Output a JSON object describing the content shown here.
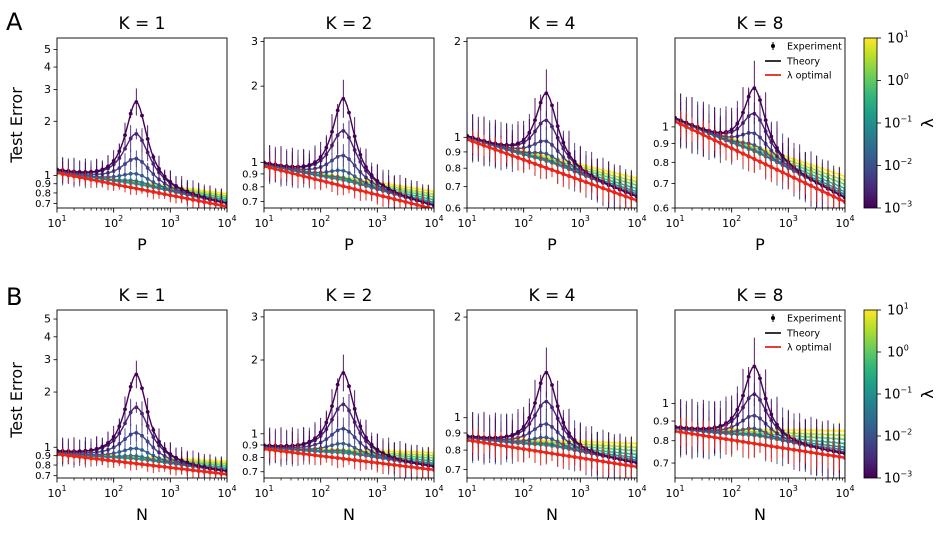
{
  "figure": {
    "row_labels": [
      "A",
      "B"
    ],
    "ylabel": "Test Error",
    "colorbar": {
      "label": "λ",
      "ticks": [
        "10^1",
        "10^0",
        "10^-1",
        "10^-2",
        "10^-3"
      ]
    }
  },
  "legend": {
    "experiment": "Experiment",
    "theory": "Theory",
    "optimal": "λ optimal"
  },
  "colors": {
    "optimal": "#e8261c",
    "lam_low": "#440154",
    "lam_high": "#fde725"
  },
  "chart_data": [
    {
      "type": "line",
      "row": "A",
      "title": "K = 1",
      "xlabel": "P",
      "xscale": "log",
      "yscale": "log",
      "xlim": [
        10,
        10000
      ],
      "ylim": [
        0.66,
        5.8
      ],
      "peak": 250,
      "peak_value": 5.3,
      "base": 1.05,
      "end": 0.68,
      "yticks": [
        5,
        4,
        3,
        2,
        1,
        0.9,
        0.8,
        0.7
      ],
      "ytick_labels": [
        "5",
        "4",
        "3",
        "2",
        "1",
        "0.9",
        "0.8",
        "0.7"
      ],
      "xtick_labels": [
        "10^1",
        "10^2",
        "10^3",
        "10^4"
      ],
      "legend": false,
      "series_lambda": [
        0.001,
        0.0025,
        0.006,
        0.015,
        0.04,
        0.1,
        0.3,
        1,
        3,
        10
      ],
      "optimal_series": "λ optimal"
    },
    {
      "type": "line",
      "row": "A",
      "title": "K = 2",
      "xlabel": "P",
      "xscale": "log",
      "yscale": "log",
      "xlim": [
        10,
        10000
      ],
      "ylim": [
        0.66,
        3.1
      ],
      "peak": 250,
      "peak_value": 3.0,
      "base": 0.98,
      "end": 0.66,
      "yticks": [
        3,
        2,
        1,
        0.9,
        0.8,
        0.7
      ],
      "ytick_labels": [
        "3",
        "2",
        "1",
        "0.9",
        "0.8",
        "0.7"
      ],
      "xtick_labels": [
        "10^1",
        "10^2",
        "10^3",
        "10^4"
      ],
      "legend": false,
      "series_lambda": [
        0.001,
        0.0025,
        0.006,
        0.015,
        0.04,
        0.1,
        0.3,
        1,
        3,
        10
      ],
      "optimal_series": "λ optimal"
    },
    {
      "type": "line",
      "row": "A",
      "title": "K = 4",
      "xlabel": "P",
      "xscale": "log",
      "yscale": "log",
      "xlim": [
        10,
        10000
      ],
      "ylim": [
        0.6,
        2.05
      ],
      "peak": 250,
      "peak_value": 1.95,
      "base": 1.0,
      "end": 0.64,
      "yticks": [
        2,
        1,
        0.9,
        0.8,
        0.7,
        0.6
      ],
      "ytick_labels": [
        "2",
        "1",
        "0.9",
        "0.8",
        "0.7",
        "0.6"
      ],
      "xtick_labels": [
        "10^1",
        "10^2",
        "10^3",
        "10^4"
      ],
      "legend": false,
      "series_lambda": [
        0.001,
        0.0025,
        0.006,
        0.015,
        0.04,
        0.1,
        0.3,
        1,
        3,
        10
      ],
      "optimal_series": "λ optimal"
    },
    {
      "type": "line",
      "row": "A",
      "title": "K = 8",
      "xlabel": "P",
      "xscale": "log",
      "yscale": "log",
      "xlim": [
        10,
        10000
      ],
      "ylim": [
        0.6,
        1.75
      ],
      "peak": 250,
      "peak_value": 1.7,
      "base": 1.05,
      "end": 0.63,
      "yticks": [
        1,
        0.9,
        0.8,
        0.7,
        0.6
      ],
      "ytick_labels": [
        "1",
        "0.9",
        "0.8",
        "0.7",
        "0.6"
      ],
      "xtick_labels": [
        "10^1",
        "10^2",
        "10^3",
        "10^4"
      ],
      "legend": true,
      "series_lambda": [
        0.001,
        0.0025,
        0.006,
        0.015,
        0.04,
        0.1,
        0.3,
        1,
        3,
        10
      ],
      "optimal_series": "λ optimal"
    },
    {
      "type": "line",
      "row": "B",
      "title": "K = 1",
      "xlabel": "N",
      "xscale": "log",
      "yscale": "log",
      "xlim": [
        10,
        10000
      ],
      "ylim": [
        0.68,
        5.6
      ],
      "peak": 250,
      "peak_value": 5.2,
      "base": 0.93,
      "end": 0.72,
      "yticks": [
        5,
        4,
        3,
        2,
        1,
        0.9,
        0.8,
        0.7
      ],
      "ytick_labels": [
        "5",
        "4",
        "3",
        "2",
        "1",
        "0.9",
        "0.8",
        "0.7"
      ],
      "xtick_labels": [
        "10^1",
        "10^2",
        "10^3",
        "10^4"
      ],
      "legend": false,
      "series_lambda": [
        0.001,
        0.0025,
        0.006,
        0.015,
        0.04,
        0.1,
        0.3,
        1,
        3,
        10
      ],
      "optimal_series": "λ optimal"
    },
    {
      "type": "line",
      "row": "B",
      "title": "K = 2",
      "xlabel": "N",
      "xscale": "log",
      "yscale": "log",
      "xlim": [
        10,
        10000
      ],
      "ylim": [
        0.66,
        3.2
      ],
      "peak": 250,
      "peak_value": 3.0,
      "base": 0.88,
      "end": 0.72,
      "yticks": [
        3,
        2,
        1,
        0.9,
        0.8,
        0.7
      ],
      "ytick_labels": [
        "3",
        "2",
        "1",
        "0.9",
        "0.8",
        "0.7"
      ],
      "xtick_labels": [
        "10^1",
        "10^2",
        "10^3",
        "10^4"
      ],
      "legend": false,
      "series_lambda": [
        0.001,
        0.0025,
        0.006,
        0.015,
        0.04,
        0.1,
        0.3,
        1,
        3,
        10
      ],
      "optimal_series": "λ optimal"
    },
    {
      "type": "line",
      "row": "B",
      "title": "K = 4",
      "xlabel": "N",
      "xscale": "log",
      "yscale": "log",
      "xlim": [
        10,
        10000
      ],
      "ylim": [
        0.66,
        2.1
      ],
      "peak": 250,
      "peak_value": 1.95,
      "base": 0.87,
      "end": 0.72,
      "yticks": [
        2,
        1,
        0.9,
        0.8,
        0.7
      ],
      "ytick_labels": [
        "2",
        "1",
        "0.9",
        "0.8",
        "0.7"
      ],
      "xtick_labels": [
        "10^1",
        "10^2",
        "10^3",
        "10^4"
      ],
      "legend": false,
      "series_lambda": [
        0.001,
        0.0025,
        0.006,
        0.015,
        0.04,
        0.1,
        0.3,
        1,
        3,
        10
      ],
      "optimal_series": "λ optimal"
    },
    {
      "type": "line",
      "row": "B",
      "title": "K = 8",
      "xlabel": "N",
      "xscale": "log",
      "yscale": "log",
      "xlim": [
        10,
        10000
      ],
      "ylim": [
        0.64,
        1.75
      ],
      "peak": 250,
      "peak_value": 1.68,
      "base": 0.86,
      "end": 0.73,
      "yticks": [
        1,
        0.9,
        0.8,
        0.7
      ],
      "ytick_labels": [
        "1",
        "0.9",
        "0.8",
        "0.7"
      ],
      "xtick_labels": [
        "10^1",
        "10^2",
        "10^3",
        "10^4"
      ],
      "legend": true,
      "series_lambda": [
        0.001,
        0.0025,
        0.006,
        0.015,
        0.04,
        0.1,
        0.3,
        1,
        3,
        10
      ],
      "optimal_series": "λ optimal"
    }
  ]
}
